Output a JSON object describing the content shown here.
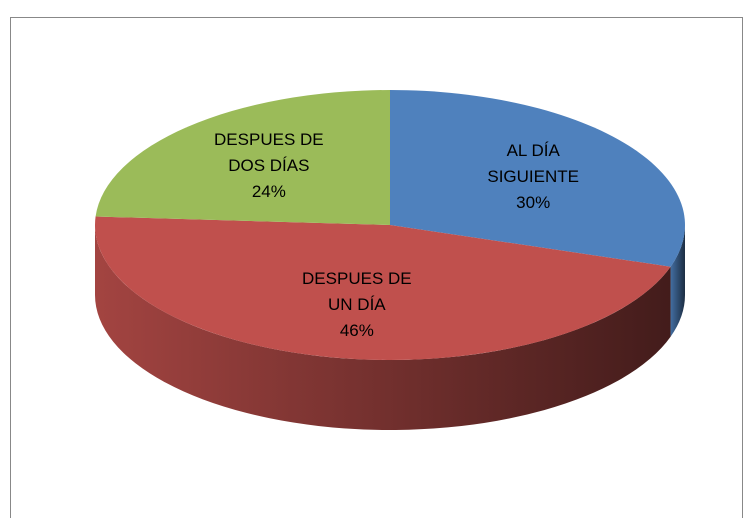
{
  "chart_data": {
    "type": "pie",
    "categories": [
      "AL DÍA SIGUIENTE",
      "DESPUES DE UN DÍA",
      "DESPUES DE DOS DÍAS"
    ],
    "values": [
      30,
      46,
      24
    ],
    "value_labels": [
      "30%",
      "46%",
      "24%"
    ],
    "colors": [
      "#4f81bd",
      "#c0504d",
      "#9bbb59"
    ]
  }
}
